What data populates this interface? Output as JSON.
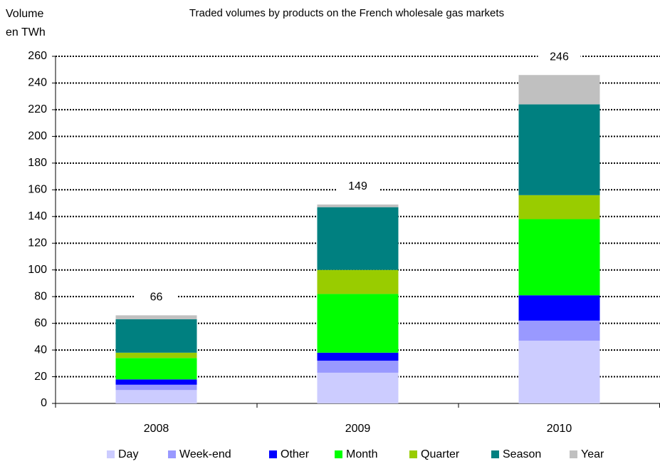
{
  "chart_data": {
    "type": "stacked_bar",
    "title": "Traded volumes by products on the French wholesale gas markets",
    "y_label": [
      "Volume",
      "en TWh"
    ],
    "categories": [
      "2008",
      "2009",
      "2010"
    ],
    "series": [
      {
        "name": "Day",
        "color": "#ccccff",
        "values": [
          10,
          23,
          47
        ]
      },
      {
        "name": "Week-end",
        "color": "#9999ff",
        "values": [
          4,
          9,
          15
        ]
      },
      {
        "name": "Other",
        "color": "#0000ff",
        "values": [
          4,
          6,
          19
        ]
      },
      {
        "name": "Month",
        "color": "#00ff00",
        "values": [
          16,
          44,
          57
        ]
      },
      {
        "name": "Quarter",
        "color": "#99cc00",
        "values": [
          4,
          18,
          18
        ]
      },
      {
        "name": "Season",
        "color": "#008080",
        "values": [
          25,
          47,
          68
        ]
      },
      {
        "name": "Year",
        "color": "#c0c0c0",
        "values": [
          3,
          2,
          22
        ]
      }
    ],
    "totals": [
      66,
      149,
      246
    ],
    "ylim": [
      0,
      260
    ],
    "yticks": [
      0,
      20,
      40,
      60,
      80,
      100,
      120,
      140,
      160,
      180,
      200,
      220,
      240,
      260
    ],
    "grid": true,
    "legend": "bottom"
  }
}
